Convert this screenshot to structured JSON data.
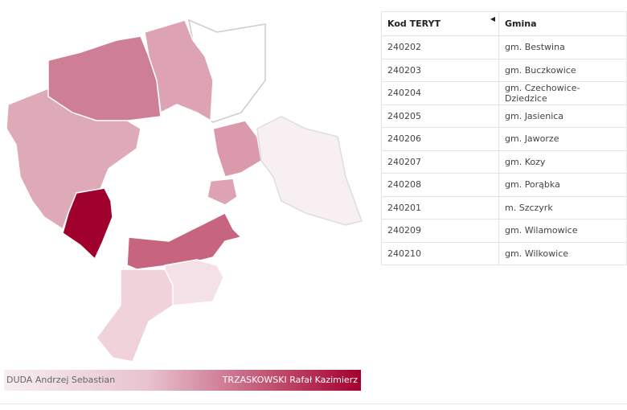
{
  "table": {
    "header": [
      "Kod TERYT",
      "Gmina"
    ],
    "rows": [
      [
        "240202",
        "gm. Bestwina"
      ],
      [
        "240203",
        "gm. Buczkowice"
      ],
      [
        "240204",
        "gm. Czechowice-Dziedzice"
      ],
      [
        "240205",
        "gm. Jasienica"
      ],
      [
        "240206",
        "gm. Jaworze"
      ],
      [
        "240207",
        "gm. Kozy"
      ],
      [
        "240208",
        "gm. Porąbka"
      ],
      [
        "240201",
        "m. Szczyrk"
      ],
      [
        "240209",
        "gm. Wilamowice"
      ],
      [
        "240210",
        "gm. Wilkowice"
      ]
    ]
  },
  "legend": {
    "low": "DUDA Andrzej Sebastian",
    "high": "TRZASKOWSKI Rafał Kazimierz"
  }
}
